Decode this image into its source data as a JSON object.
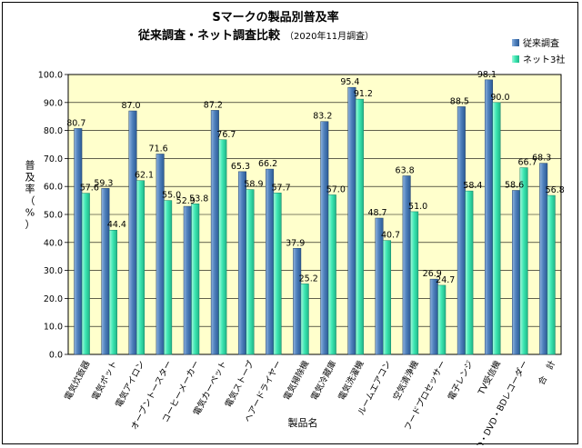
{
  "chart_data": {
    "type": "bar",
    "title": "Sマークの製品別普及率",
    "subtitle": "従来調査・ネット調査比較",
    "subtitle_note": "（2020年11月調査）",
    "xlabel": "製品名",
    "ylabel": "普及率（%）",
    "ylim": [
      0,
      100
    ],
    "yticks": [
      "0.0",
      "10.0",
      "20.0",
      "30.0",
      "40.0",
      "50.0",
      "60.0",
      "70.0",
      "80.0",
      "90.0",
      "100.0"
    ],
    "grid": true,
    "legend": "top-right",
    "categories": [
      "電気炊飯器",
      "電気ポット",
      "電気アイロン",
      "オーブントースター",
      "コーヒーメーカー",
      "電気カーペット",
      "電気ストーブ",
      "ヘアードライヤー",
      "電気掃除機",
      "電気冷蔵庫",
      "電気洗濯機",
      "ルームエアコン",
      "空気清浄機",
      "フードプロセッサー",
      "電子レンジ",
      "TV受信機",
      "CD・DVD・BDレコーダー",
      "合　計"
    ],
    "series": [
      {
        "name": "従来調査",
        "color": "#4f81bd",
        "values": [
          80.7,
          59.3,
          87.0,
          71.6,
          52.9,
          87.2,
          65.3,
          66.2,
          37.9,
          83.2,
          95.4,
          48.7,
          63.8,
          26.9,
          88.5,
          98.1,
          58.6,
          68.3
        ]
      },
      {
        "name": "ネット3社",
        "color": "#3ee8b4",
        "values": [
          57.6,
          44.4,
          62.1,
          55.0,
          53.8,
          76.7,
          58.9,
          57.7,
          25.2,
          57.0,
          91.2,
          40.7,
          51.0,
          24.7,
          58.4,
          90.0,
          66.7,
          56.8
        ]
      }
    ],
    "data_labels": [
      [
        "80.7",
        "59.3",
        "87.0",
        "71.6",
        "52.9",
        "87.2",
        "65.3",
        "66.2",
        "37.9",
        "83.2",
        "95.4",
        "48.7",
        "63.8",
        "26.9",
        "88.5",
        "98.1",
        "58.6",
        "68.3"
      ],
      [
        "57.6",
        "44.4",
        "62.1",
        "55.0",
        "53.8",
        "76.7",
        "58.9",
        "57.7",
        "25.2",
        "57.0",
        "91.2",
        "40.7",
        "51.0",
        "24.7",
        "58.4",
        "90.0",
        "66.7",
        "56.8"
      ]
    ],
    "plot_bg": "#ffffcc"
  }
}
